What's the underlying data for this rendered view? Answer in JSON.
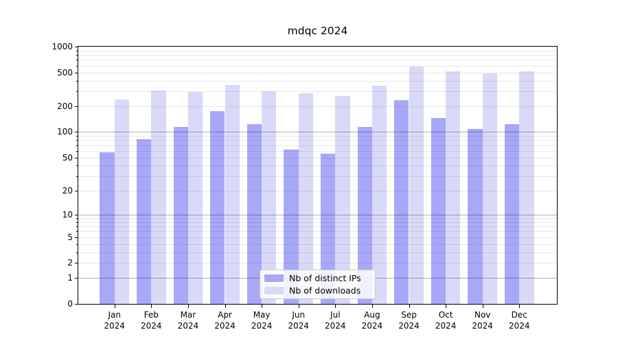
{
  "chart_data": {
    "type": "bar",
    "title": "mdqc 2024",
    "categories": [
      "Jan 2024",
      "Feb 2024",
      "Mar 2024",
      "Apr 2024",
      "May 2024",
      "Jun 2024",
      "Jul 2024",
      "Aug 2024",
      "Sep 2024",
      "Oct 2024",
      "Nov 2024",
      "Dec 2024"
    ],
    "series": [
      {
        "name": "Nb of distinct IPs",
        "color": "#a8a8f8",
        "values": [
          58,
          82,
          115,
          175,
          123,
          62,
          56,
          115,
          235,
          146,
          108,
          125
        ]
      },
      {
        "name": "Nb of downloads",
        "color": "#d9d9f8",
        "values": [
          240,
          310,
          296,
          357,
          303,
          284,
          265,
          348,
          585,
          515,
          485,
          512
        ]
      }
    ],
    "y_axis": {
      "scale": "symlog",
      "ticks": [
        0,
        1,
        2,
        5,
        10,
        20,
        50,
        100,
        200,
        500,
        1000
      ],
      "range": [
        0,
        1000
      ]
    },
    "x_axis": {
      "tick_label_lines": 2
    },
    "grid": {
      "show": true,
      "major_color": "#b0b0b0",
      "minor_color": "#e9e9e9"
    },
    "legend": {
      "position": "lower center"
    }
  }
}
